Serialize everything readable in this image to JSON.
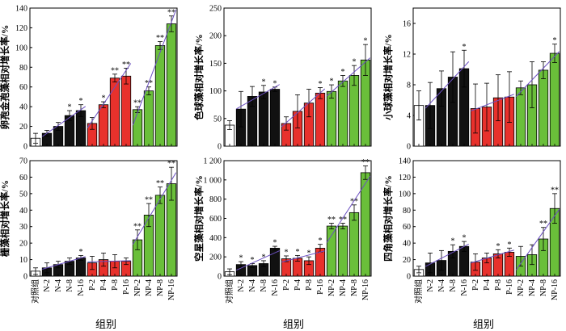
{
  "figure": {
    "xlabel": "组别"
  },
  "colors": {
    "control": "#ffffff",
    "N": "#111111",
    "P": "#e8312c",
    "NP": "#6abf3a",
    "trend": "#6b4fc2"
  },
  "chart_data": [
    {
      "type": "bar",
      "ylabel": "卵孢金孢藻相对增长率/%",
      "ylim": [
        0,
        140
      ],
      "yticks": [
        0,
        20,
        40,
        60,
        80,
        100,
        120,
        140
      ],
      "ytick_labels": [
        "0",
        "20",
        "40",
        "60",
        "80",
        "100",
        "120",
        "140"
      ],
      "categories": [
        "对照组",
        "N-2",
        "N-4",
        "N-8",
        "N-16",
        "P-2",
        "P-4",
        "P-8",
        "P-16",
        "NP-2",
        "NP-4",
        "NP-8",
        "NP-16"
      ],
      "groups": [
        "control",
        "N",
        "N",
        "N",
        "N",
        "P",
        "P",
        "P",
        "P",
        "NP",
        "NP",
        "NP",
        "NP"
      ],
      "values": [
        8,
        13,
        20,
        31,
        36,
        23,
        42,
        69,
        71,
        37,
        56,
        102,
        124
      ],
      "errors": [
        5,
        3,
        4,
        5,
        6,
        6,
        3,
        4,
        8,
        3,
        4,
        4,
        8
      ],
      "annotations": [
        "",
        "",
        "",
        "*",
        "*",
        "",
        "*",
        "**",
        "**",
        "**",
        "**",
        "**",
        "**"
      ],
      "show_xlabels": false
    },
    {
      "type": "bar",
      "ylabel": "色球藻相对增长率/%",
      "ylim": [
        0,
        250
      ],
      "yticks": [
        0,
        50,
        100,
        150,
        200,
        250
      ],
      "ytick_labels": [
        "0",
        "50",
        "100",
        "150",
        "200",
        "250"
      ],
      "categories": [
        "对照组",
        "N-2",
        "N-4",
        "N-8",
        "N-16",
        "P-2",
        "P-4",
        "P-8",
        "P-16",
        "NP-2",
        "NP-4",
        "NP-8",
        "NP-16"
      ],
      "groups": [
        "control",
        "N",
        "N",
        "N",
        "N",
        "P",
        "P",
        "P",
        "P",
        "NP",
        "NP",
        "NP",
        "NP"
      ],
      "values": [
        38,
        67,
        90,
        98,
        103,
        41,
        63,
        78,
        96,
        99,
        118,
        128,
        156
      ],
      "errors": [
        8,
        32,
        18,
        12,
        4,
        12,
        30,
        25,
        10,
        12,
        10,
        18,
        28
      ],
      "annotations": [
        "",
        "",
        "",
        "*",
        "*",
        "",
        "",
        "",
        "*",
        "*",
        "*",
        "*",
        "*"
      ],
      "show_xlabels": false
    },
    {
      "type": "bar",
      "ylabel": "小球藻相对增长率/%",
      "ylim": [
        0,
        18
      ],
      "yticks": [
        0,
        4,
        8,
        12,
        16
      ],
      "ytick_labels": [
        "0",
        "4",
        "8",
        "12",
        "16"
      ],
      "categories": [
        "对照组",
        "N-2",
        "N-4",
        "N-8",
        "N-16",
        "P-2",
        "P-4",
        "P-8",
        "P-16",
        "NP-2",
        "NP-4",
        "NP-8",
        "NP-16"
      ],
      "groups": [
        "control",
        "N",
        "N",
        "N",
        "N",
        "P",
        "P",
        "P",
        "P",
        "NP",
        "NP",
        "NP",
        "NP"
      ],
      "values": [
        5.3,
        5.3,
        7.5,
        9.0,
        10.1,
        4.9,
        5.1,
        6.3,
        6.4,
        7.6,
        8.0,
        9.9,
        12.1
      ],
      "errors": [
        1.9,
        3.0,
        2.3,
        3.3,
        2.4,
        3.2,
        3.1,
        3.0,
        3.3,
        0.9,
        3.0,
        1.1,
        1.2
      ],
      "annotations": [
        "",
        "",
        "",
        "",
        "*",
        "",
        "",
        "",
        "",
        "",
        "",
        "",
        "*"
      ],
      "show_xlabels": false
    },
    {
      "type": "bar",
      "ylabel": "栅藻相对增长率/%",
      "ylim": [
        0,
        70
      ],
      "yticks": [
        0,
        10,
        20,
        30,
        40,
        50,
        60,
        70
      ],
      "ytick_labels": [
        "0",
        "10",
        "20",
        "30",
        "40",
        "50",
        "60",
        "70"
      ],
      "categories": [
        "对照组",
        "N-2",
        "N-4",
        "N-8",
        "N-16",
        "P-2",
        "P-4",
        "P-8",
        "P-16",
        "NP-2",
        "NP-4",
        "NP-8",
        "NP-16"
      ],
      "groups": [
        "control",
        "N",
        "N",
        "N",
        "N",
        "P",
        "P",
        "P",
        "P",
        "NP",
        "NP",
        "NP",
        "NP"
      ],
      "values": [
        3,
        5,
        7,
        9,
        11,
        8,
        10,
        9,
        9,
        22,
        37,
        49,
        56
      ],
      "errors": [
        2,
        3,
        2,
        2,
        1.5,
        4,
        4,
        4,
        2,
        6,
        7,
        5,
        10
      ],
      "annotations": [
        "",
        "",
        "",
        "",
        "*",
        "",
        "",
        "",
        "",
        "**",
        "**",
        "**",
        "**"
      ],
      "show_xlabels": true
    },
    {
      "type": "bar",
      "ylabel": "空星藻相对增长率/%",
      "ylim": [
        0,
        1200
      ],
      "yticks": [
        0,
        200,
        400,
        600,
        800,
        1000,
        1200
      ],
      "ytick_labels": [
        "0",
        "200",
        "400",
        "600",
        "800",
        "1 000",
        "1 200"
      ],
      "categories": [
        "对照组",
        "N-2",
        "N-4",
        "N-8",
        "N-16",
        "P-2",
        "P-4",
        "P-8",
        "P-16",
        "NP-2",
        "NP-4",
        "NP-8",
        "NP-16"
      ],
      "groups": [
        "control",
        "N",
        "N",
        "N",
        "N",
        "P",
        "P",
        "P",
        "P",
        "NP",
        "NP",
        "NP",
        "NP"
      ],
      "values": [
        45,
        120,
        110,
        130,
        290,
        180,
        185,
        160,
        290,
        520,
        520,
        660,
        1075
      ],
      "errors": [
        30,
        30,
        20,
        30,
        20,
        30,
        30,
        40,
        40,
        30,
        30,
        80,
        70
      ],
      "annotations": [
        "",
        "*",
        "*",
        "*",
        "*",
        "*",
        "*",
        "*",
        "*",
        "**",
        "**",
        "**",
        "**"
      ],
      "show_xlabels": true
    },
    {
      "type": "bar",
      "ylabel": "四角藻相对增长率/%",
      "ylim": [
        0,
        140
      ],
      "yticks": [
        0,
        20,
        40,
        60,
        80,
        100,
        120,
        140
      ],
      "ytick_labels": [
        "0",
        "20",
        "40",
        "60",
        "80",
        "100",
        "120",
        "140"
      ],
      "categories": [
        "对照组",
        "N-2",
        "N-4",
        "N-8",
        "N-16",
        "P-2",
        "P-4",
        "P-8",
        "P-16",
        "NP-2",
        "NP-4",
        "NP-8",
        "NP-16"
      ],
      "groups": [
        "control",
        "N",
        "N",
        "N",
        "N",
        "P",
        "P",
        "P",
        "P",
        "NP",
        "NP",
        "NP",
        "NP"
      ],
      "values": [
        8,
        16,
        19,
        30,
        36,
        17,
        22,
        27,
        29,
        24,
        26,
        45,
        82
      ],
      "errors": [
        4,
        12,
        12,
        8,
        6,
        10,
        6,
        5,
        5,
        12,
        12,
        14,
        18
      ],
      "annotations": [
        "",
        "",
        "",
        "*",
        "*",
        "",
        "",
        "*",
        "*",
        "",
        "",
        "**",
        "**"
      ],
      "show_xlabels": true
    }
  ]
}
